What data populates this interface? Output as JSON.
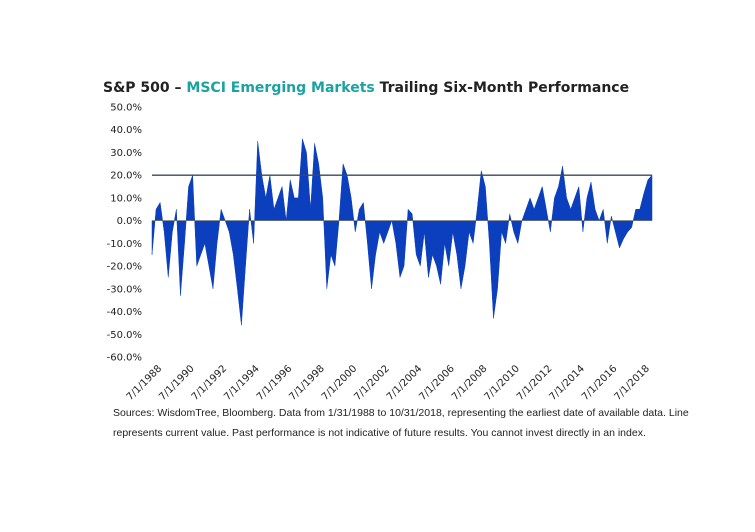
{
  "chart_data": {
    "type": "area",
    "title_parts": [
      {
        "text": "S&P 500 – ",
        "color": "#222222"
      },
      {
        "text": "MSCI Emerging Markets",
        "color": "#1aa3a3"
      },
      {
        "text": " Trailing Six-Month Performance",
        "color": "#222222"
      }
    ],
    "color": "#0b3fbd",
    "reference_line": {
      "value": 20,
      "color": "#3a4a5a"
    },
    "ylim": [
      -60,
      50
    ],
    "yticks": [
      {
        "value": -60,
        "label": "-60.0%"
      },
      {
        "value": -50,
        "label": "-50.0%"
      },
      {
        "value": -40,
        "label": "-40.0%"
      },
      {
        "value": -30,
        "label": "-30.0%"
      },
      {
        "value": -20,
        "label": "-20.0%"
      },
      {
        "value": -10,
        "label": "-10.0%"
      },
      {
        "value": 0,
        "label": "0.0%"
      },
      {
        "value": 10,
        "label": "10.0%"
      },
      {
        "value": 20,
        "label": "20.0%"
      },
      {
        "value": 30,
        "label": "30.0%"
      },
      {
        "value": 40,
        "label": "40.0%"
      },
      {
        "value": 50,
        "label": "50.0%"
      }
    ],
    "xlim": [
      "1988-01",
      "2018-10"
    ],
    "xticks": [
      {
        "value": "1988-07",
        "label": "7/1/1988"
      },
      {
        "value": "1990-07",
        "label": "7/1/1990"
      },
      {
        "value": "1992-07",
        "label": "7/1/1992"
      },
      {
        "value": "1994-07",
        "label": "7/1/1994"
      },
      {
        "value": "1996-07",
        "label": "7/1/1996"
      },
      {
        "value": "1998-07",
        "label": "7/1/1998"
      },
      {
        "value": "2000-07",
        "label": "7/1/2000"
      },
      {
        "value": "2002-07",
        "label": "7/1/2002"
      },
      {
        "value": "2004-07",
        "label": "7/1/2004"
      },
      {
        "value": "2006-07",
        "label": "7/1/2006"
      },
      {
        "value": "2008-07",
        "label": "7/1/2008"
      },
      {
        "value": "2010-07",
        "label": "7/1/2010"
      },
      {
        "value": "2012-07",
        "label": "7/1/2012"
      },
      {
        "value": "2014-07",
        "label": "7/1/2014"
      },
      {
        "value": "2016-07",
        "label": "7/1/2016"
      },
      {
        "value": "2018-07",
        "label": "7/1/2018"
      }
    ],
    "x": [
      "1988-01",
      "1988-04",
      "1988-07",
      "1988-10",
      "1989-01",
      "1989-04",
      "1989-07",
      "1989-10",
      "1990-01",
      "1990-04",
      "1990-07",
      "1990-10",
      "1991-01",
      "1991-04",
      "1991-07",
      "1991-10",
      "1992-01",
      "1992-04",
      "1992-07",
      "1992-10",
      "1993-01",
      "1993-04",
      "1993-07",
      "1993-10",
      "1994-01",
      "1994-04",
      "1994-07",
      "1994-10",
      "1995-01",
      "1995-04",
      "1995-07",
      "1995-10",
      "1996-01",
      "1996-04",
      "1996-07",
      "1996-10",
      "1997-01",
      "1997-04",
      "1997-07",
      "1997-10",
      "1998-01",
      "1998-04",
      "1998-07",
      "1998-10",
      "1999-01",
      "1999-04",
      "1999-07",
      "1999-10",
      "2000-01",
      "2000-04",
      "2000-07",
      "2000-10",
      "2001-01",
      "2001-04",
      "2001-07",
      "2001-10",
      "2002-01",
      "2002-04",
      "2002-07",
      "2002-10",
      "2003-01",
      "2003-04",
      "2003-07",
      "2003-10",
      "2004-01",
      "2004-04",
      "2004-07",
      "2004-10",
      "2005-01",
      "2005-04",
      "2005-07",
      "2005-10",
      "2006-01",
      "2006-04",
      "2006-07",
      "2006-10",
      "2007-01",
      "2007-04",
      "2007-07",
      "2007-10",
      "2008-01",
      "2008-04",
      "2008-07",
      "2008-10",
      "2009-01",
      "2009-04",
      "2009-07",
      "2009-10",
      "2010-01",
      "2010-04",
      "2010-07",
      "2010-10",
      "2011-01",
      "2011-04",
      "2011-07",
      "2011-10",
      "2012-01",
      "2012-04",
      "2012-07",
      "2012-10",
      "2013-01",
      "2013-04",
      "2013-07",
      "2013-10",
      "2014-01",
      "2014-04",
      "2014-07",
      "2014-10",
      "2015-01",
      "2015-04",
      "2015-07",
      "2015-10",
      "2016-01",
      "2016-04",
      "2016-07",
      "2016-10",
      "2017-01",
      "2017-04",
      "2017-07",
      "2017-10",
      "2018-01",
      "2018-04",
      "2018-07",
      "2018-10"
    ],
    "values": [
      -15,
      5,
      8,
      -5,
      -25,
      -5,
      5,
      -33,
      -10,
      15,
      20,
      -20,
      -15,
      -10,
      -20,
      -30,
      -10,
      5,
      0,
      -5,
      -15,
      -30,
      -46,
      -20,
      5,
      -10,
      35,
      20,
      10,
      20,
      5,
      10,
      15,
      0,
      18,
      10,
      10,
      36,
      30,
      5,
      34,
      25,
      10,
      -30,
      -15,
      -20,
      0,
      25,
      20,
      10,
      -5,
      5,
      8,
      -10,
      -30,
      -15,
      -5,
      -10,
      -5,
      0,
      -10,
      -25,
      -20,
      5,
      3,
      -15,
      -20,
      -5,
      -25,
      -15,
      -20,
      -28,
      -10,
      -20,
      -5,
      -15,
      -30,
      -20,
      -5,
      -10,
      5,
      22,
      15,
      -10,
      -43,
      -30,
      -5,
      -10,
      3,
      -5,
      -10,
      0,
      5,
      10,
      5,
      10,
      15,
      5,
      -5,
      10,
      15,
      24,
      10,
      5,
      10,
      15,
      -5,
      10,
      17,
      5,
      0,
      5,
      -10,
      2,
      -5,
      -12,
      -8,
      -5,
      -3,
      5,
      5,
      12,
      18,
      20
    ],
    "notes": [
      "Sources: WisdomTree, Bloomberg. Data from 1/31/1988 to 10/31/2018, representing the earliest date of available data. Line",
      "represents current value. Past performance is not indicative of future results. You cannot invest directly in an index."
    ]
  }
}
